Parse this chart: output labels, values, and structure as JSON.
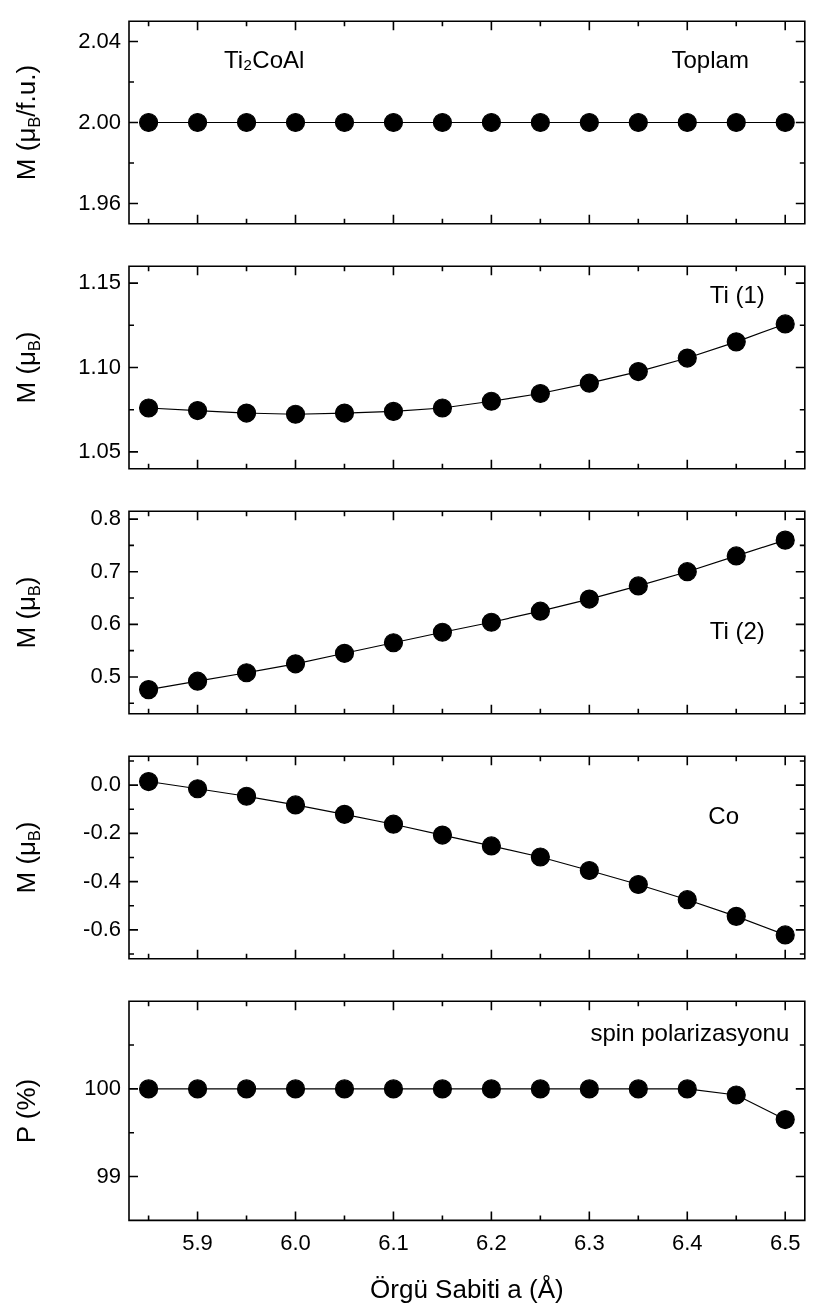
{
  "chart_data": [
    {
      "type": "line",
      "ylabel": "M (μ$_{B}$/f.u.)",
      "annotations": [
        "Ti₂CoAl",
        "Toplam"
      ],
      "marker": "circle",
      "tick_labels": "y",
      "x": [
        5.85,
        5.9,
        5.95,
        6.0,
        6.05,
        6.1,
        6.15,
        6.2,
        6.25,
        6.3,
        6.35,
        6.4,
        6.45,
        6.5
      ],
      "xlim": [
        5.83,
        6.52
      ],
      "xticks": [
        {
          "value": 5.85,
          "label": null
        },
        5.9,
        {
          "value": 5.95,
          "label": null
        },
        6,
        {
          "value": 6.05,
          "label": null
        },
        6.1,
        {
          "value": 6.15,
          "label": null
        },
        6.2,
        {
          "value": 6.25,
          "label": null
        },
        6.3,
        {
          "value": 6.35,
          "label": null
        },
        6.4,
        {
          "value": 6.45,
          "label": null
        },
        6.5
      ],
      "ylim": [
        1.95,
        2.05
      ],
      "yticks": [
        1.96,
        {
          "value": 1.98,
          "label": null
        },
        {
          "value": 2,
          "label": "2.00"
        },
        {
          "value": 2.02,
          "label": null
        },
        2.04
      ],
      "series": [
        {
          "color": "#000000",
          "values": [
            2.0,
            2.0,
            2.0,
            2.0,
            2.0,
            2.0,
            2.0,
            2.0,
            2.0,
            2.0,
            2.0,
            2.0,
            2.0,
            2.0
          ]
        }
      ]
    },
    {
      "type": "line",
      "ylabel": "M (μ$_{B}$)",
      "annotations": [
        "Ti (1)"
      ],
      "marker": "circle",
      "tick_labels": "y",
      "x": [
        5.85,
        5.9,
        5.95,
        6.0,
        6.05,
        6.1,
        6.15,
        6.2,
        6.25,
        6.3,
        6.35,
        6.4,
        6.45,
        6.5
      ],
      "xlim": [
        5.83,
        6.52
      ],
      "xticks": [
        {
          "value": 5.85,
          "label": null
        },
        5.9,
        {
          "value": 5.95,
          "label": null
        },
        6,
        {
          "value": 6.05,
          "label": null
        },
        6.1,
        {
          "value": 6.15,
          "label": null
        },
        6.2,
        {
          "value": 6.25,
          "label": null
        },
        6.3,
        {
          "value": 6.35,
          "label": null
        },
        6.4,
        {
          "value": 6.45,
          "label": null
        },
        6.5
      ],
      "ylim": [
        1.04,
        1.16
      ],
      "yticks": [
        1.05,
        {
          "value": 1.075,
          "label": null
        },
        {
          "value": 1.1,
          "label": "1.10"
        },
        {
          "value": 1.125,
          "label": null
        },
        1.15
      ],
      "series": [
        {
          "color": "#000000",
          "values": [
            1.076,
            1.0745,
            1.073,
            1.0723,
            1.073,
            1.074,
            1.076,
            1.08,
            1.0846,
            1.0907,
            1.0976,
            1.1056,
            1.1152,
            1.1258
          ]
        }
      ]
    },
    {
      "type": "line",
      "ylabel": "M (μ$_{B}$)",
      "annotations": [
        "Ti (2)"
      ],
      "marker": "circle",
      "tick_labels": "y",
      "x": [
        5.85,
        5.9,
        5.95,
        6.0,
        6.05,
        6.1,
        6.15,
        6.2,
        6.25,
        6.3,
        6.35,
        6.4,
        6.45,
        6.5
      ],
      "xlim": [
        5.83,
        6.52
      ],
      "xticks": [
        {
          "value": 5.85,
          "label": null
        },
        5.9,
        {
          "value": 5.95,
          "label": null
        },
        6,
        {
          "value": 6.05,
          "label": null
        },
        6.1,
        {
          "value": 6.15,
          "label": null
        },
        6.2,
        {
          "value": 6.25,
          "label": null
        },
        6.3,
        {
          "value": 6.35,
          "label": null
        },
        6.4,
        {
          "value": 6.45,
          "label": null
        },
        6.5
      ],
      "ylim": [
        0.43,
        0.815
      ],
      "yticks": [
        {
          "value": 0.45,
          "label": null
        },
        0.5,
        {
          "value": 0.55,
          "label": null
        },
        0.6,
        {
          "value": 0.65,
          "label": null
        },
        0.7,
        {
          "value": 0.75,
          "label": null
        },
        0.8
      ],
      "series": [
        {
          "color": "#000000",
          "values": [
            0.476,
            0.492,
            0.508,
            0.525,
            0.545,
            0.565,
            0.585,
            0.604,
            0.625,
            0.648,
            0.673,
            0.7,
            0.73,
            0.76
          ]
        }
      ]
    },
    {
      "type": "line",
      "ylabel": "M (μ$_{B}$)",
      "annotations": [
        "Co"
      ],
      "marker": "circle",
      "tick_labels": "y",
      "x": [
        5.85,
        5.9,
        5.95,
        6.0,
        6.05,
        6.1,
        6.15,
        6.2,
        6.25,
        6.3,
        6.35,
        6.4,
        6.45,
        6.5
      ],
      "xlim": [
        5.83,
        6.52
      ],
      "xticks": [
        {
          "value": 5.85,
          "label": null
        },
        5.9,
        {
          "value": 5.95,
          "label": null
        },
        6,
        {
          "value": 6.05,
          "label": null
        },
        6.1,
        {
          "value": 6.15,
          "label": null
        },
        6.2,
        {
          "value": 6.25,
          "label": null
        },
        6.3,
        {
          "value": 6.35,
          "label": null
        },
        6.4,
        {
          "value": 6.45,
          "label": null
        },
        6.5
      ],
      "ylim": [
        -0.72,
        0.12
      ],
      "yticks": [
        {
          "value": -0.7,
          "label": null
        },
        -0.6,
        {
          "value": -0.5,
          "label": null
        },
        -0.4,
        {
          "value": -0.3,
          "label": null
        },
        -0.2,
        {
          "value": -0.1,
          "label": null
        },
        {
          "value": 0,
          "label": "0.0"
        },
        {
          "value": 0.1,
          "label": null
        }
      ],
      "series": [
        {
          "color": "#000000",
          "values": [
            0.015,
            -0.015,
            -0.046,
            -0.082,
            -0.121,
            -0.162,
            -0.207,
            -0.252,
            -0.298,
            -0.354,
            -0.412,
            -0.475,
            -0.544,
            -0.621
          ]
        }
      ]
    },
    {
      "type": "line",
      "ylabel": "P (%)",
      "xlabel": "Örgü Sabiti a (Å)",
      "annotations": [
        "spin polarizasyonu"
      ],
      "marker": "circle",
      "x": [
        5.85,
        5.9,
        5.95,
        6.0,
        6.05,
        6.1,
        6.15,
        6.2,
        6.25,
        6.3,
        6.35,
        6.4,
        6.45,
        6.5
      ],
      "xlim": [
        5.83,
        6.52
      ],
      "xticks": [
        {
          "value": 5.85,
          "label": null
        },
        5.9,
        {
          "value": 5.95,
          "label": null
        },
        {
          "value": 6,
          "label": "6.0"
        },
        {
          "value": 6.05,
          "label": null
        },
        6.1,
        {
          "value": 6.15,
          "label": null
        },
        6.2,
        {
          "value": 6.25,
          "label": null
        },
        6.3,
        {
          "value": 6.35,
          "label": null
        },
        6.4,
        {
          "value": 6.45,
          "label": null
        },
        6.5
      ],
      "ylim": [
        98.5,
        101
      ],
      "yticks": [
        99,
        {
          "value": 99.5,
          "label": null
        },
        100,
        {
          "value": 100.5,
          "label": null
        }
      ],
      "series": [
        {
          "color": "#000000",
          "values": [
            100,
            100,
            100,
            100,
            100,
            100,
            100,
            100,
            100,
            100,
            100,
            100,
            99.93,
            99.65
          ]
        }
      ]
    }
  ]
}
